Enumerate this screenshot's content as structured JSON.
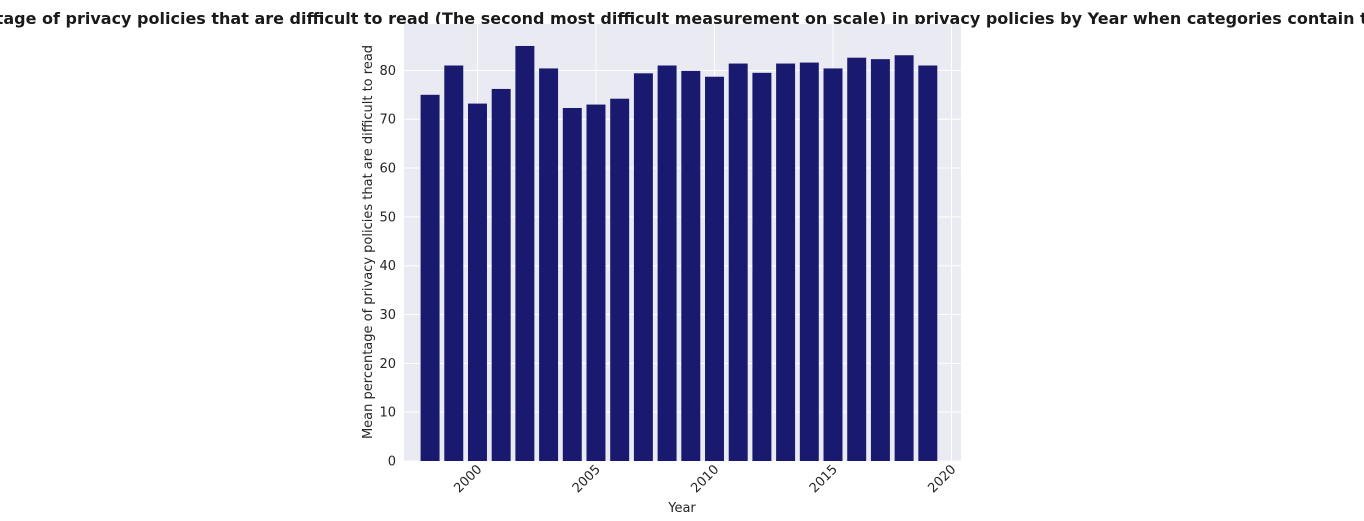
{
  "chart_data": {
    "type": "bar",
    "title": "Mean percentage of privacy policies that are difficult to read (The second most difficult measurement on scale) in privacy policies by Year when categories contain tech or media",
    "xlabel": "Year",
    "ylabel": "Mean percentage of privacy policies that are difficult to read",
    "categories": [
      1998,
      1999,
      2000,
      2001,
      2002,
      2003,
      2004,
      2005,
      2006,
      2007,
      2008,
      2009,
      2010,
      2011,
      2012,
      2013,
      2014,
      2015,
      2016,
      2017,
      2018,
      2019
    ],
    "values": [
      75.0,
      81.0,
      73.2,
      76.2,
      85.0,
      80.4,
      72.3,
      73.0,
      74.2,
      79.4,
      81.0,
      79.9,
      78.7,
      81.4,
      79.5,
      81.4,
      81.6,
      80.4,
      82.6,
      82.3,
      83.1,
      81.0
    ],
    "xlim": [
      1996.9,
      2020.4
    ],
    "ylim": [
      0,
      89.5
    ],
    "xticks": [
      2000,
      2005,
      2010,
      2015,
      2020
    ],
    "yticks": [
      0,
      10,
      20,
      30,
      40,
      50,
      60,
      70,
      80
    ],
    "grid": true,
    "colors": {
      "bar": "#191970",
      "plot_background": "#eaeaf2",
      "grid": "#ffffff",
      "text": "#262626"
    }
  }
}
